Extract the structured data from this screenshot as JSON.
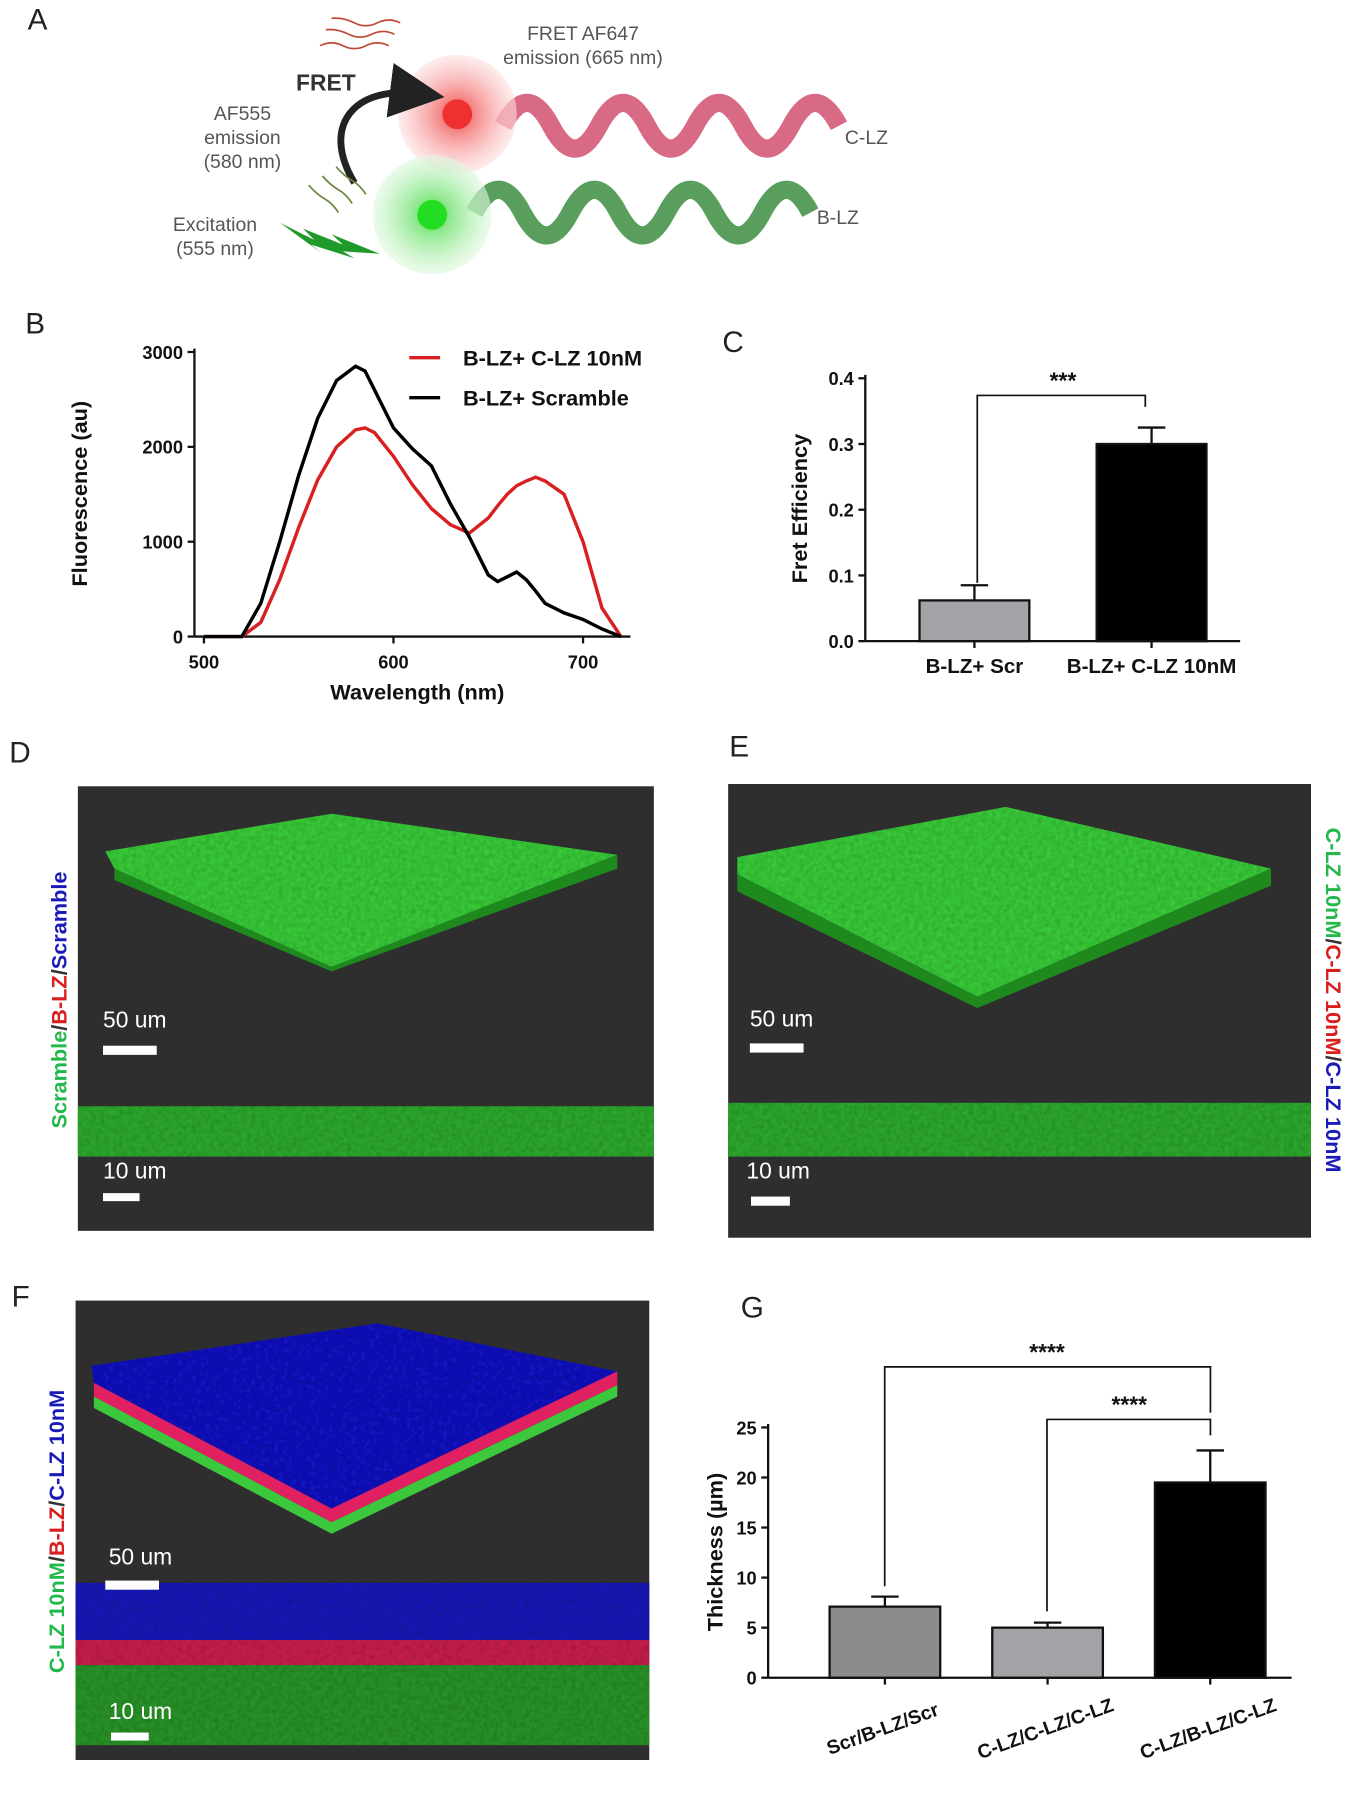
{
  "panel_labels": [
    "A",
    "B",
    "C",
    "D",
    "E",
    "F",
    "G"
  ],
  "diagram": {
    "fret_label": "FRET",
    "acceptor_emission": [
      "FRET AF647",
      "emission (665 nm)"
    ],
    "donor_emission": [
      "AF555",
      "emission",
      "(580 nm)"
    ],
    "excitation": [
      "Excitation",
      "(555 nm)"
    ],
    "acceptor_strand": "C-LZ",
    "donor_strand": "B-LZ"
  },
  "images": [
    {
      "channel_label": [
        {
          "text": "Scramble",
          "color": "#22b84a"
        },
        {
          "text": "/",
          "color": "#333333"
        },
        {
          "text": "B-LZ",
          "color": "#d81e1e"
        },
        {
          "text": "/",
          "color": "#333333"
        },
        {
          "text": "Scramble",
          "color": "#1a1ab8"
        }
      ],
      "scale_bars": [
        "50 um",
        "10 um"
      ]
    },
    {
      "channel_label": [
        {
          "text": "C-LZ 10nM",
          "color": "#22b84a"
        },
        {
          "text": "/",
          "color": "#333333"
        },
        {
          "text": "C-LZ 10nM",
          "color": "#d81e1e"
        },
        {
          "text": "/",
          "color": "#333333"
        },
        {
          "text": "C-LZ 10nM",
          "color": "#1a1ab8"
        }
      ],
      "scale_bars": [
        "50 um",
        "10 um"
      ]
    },
    {
      "channel_label": [
        {
          "text": "C-LZ 10nM",
          "color": "#22b84a"
        },
        {
          "text": "/",
          "color": "#333333"
        },
        {
          "text": "B-LZ",
          "color": "#d81e1e"
        },
        {
          "text": "/",
          "color": "#333333"
        },
        {
          "text": "C-LZ 10nM",
          "color": "#1a1ab8"
        }
      ],
      "scale_bars": [
        "50 um",
        "10 um"
      ]
    }
  ],
  "chart_data": [
    {
      "type": "line",
      "x_label": "Wavelength (nm)",
      "y_label": "Fluorescence (au)",
      "x": [
        500,
        510,
        520,
        530,
        540,
        550,
        560,
        570,
        580,
        585,
        590,
        600,
        610,
        620,
        630,
        640,
        650,
        655,
        660,
        665,
        670,
        675,
        680,
        690,
        700,
        710,
        720
      ],
      "series": [
        {
          "name": "B-LZ+ C-LZ 10nM",
          "color": "#d92020",
          "values": [
            0,
            0,
            0,
            150,
            600,
            1150,
            1650,
            2000,
            2180,
            2200,
            2150,
            1900,
            1600,
            1350,
            1180,
            1090,
            1250,
            1380,
            1500,
            1590,
            1640,
            1680,
            1640,
            1500,
            1000,
            300,
            0
          ]
        },
        {
          "name": "B-LZ+ Scramble",
          "color": "#000000",
          "values": [
            0,
            0,
            0,
            350,
            1000,
            1700,
            2300,
            2700,
            2850,
            2800,
            2600,
            2200,
            1980,
            1800,
            1400,
            1050,
            650,
            580,
            630,
            680,
            600,
            480,
            350,
            250,
            180,
            80,
            0
          ]
        }
      ],
      "xlim": [
        495,
        725
      ],
      "xticks": [
        500,
        600,
        700
      ],
      "ylim": [
        0,
        3000
      ],
      "yticks": [
        0,
        1000,
        2000,
        3000
      ],
      "legend": "upper right"
    },
    {
      "type": "bar",
      "y_label": "Fret Efficiency",
      "categories": [
        "B-LZ+ Scr",
        "B-LZ+ C-LZ 10nM"
      ],
      "values": [
        0.062,
        0.3
      ],
      "errors": [
        0.023,
        0.025
      ],
      "colors": [
        "#a3a3a7",
        "#000000"
      ],
      "ylim": [
        0,
        0.4
      ],
      "yticks": [
        {
          "value": 0,
          "label": "0.0"
        },
        0.1,
        0.2,
        0.3,
        0.4
      ],
      "annotations": [
        "***"
      ]
    },
    {
      "type": "bar",
      "y_label": "Thickness (µm)",
      "categories": [
        "Scr/B-LZ/Scr",
        "C-LZ/C-LZ/C-LZ",
        "C-LZ/B-LZ/C-LZ"
      ],
      "values": [
        7.1,
        5.0,
        19.5
      ],
      "errors": [
        1.0,
        0.5,
        3.2
      ],
      "colors": [
        "#8c8c8c",
        "#a3a3a7",
        "#000000"
      ],
      "ylim": [
        0,
        25
      ],
      "yticks": [
        0,
        5,
        10,
        15,
        20,
        25
      ],
      "annotations": [
        "****",
        "****"
      ]
    }
  ]
}
